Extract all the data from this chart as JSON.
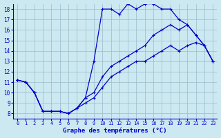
{
  "title": "Graphe des températures (°C)",
  "background_color": "#cce8f0",
  "grid_color": "#99bbcc",
  "line_color": "#0000cc",
  "xlim": [
    -0.5,
    23.5
  ],
  "ylim": [
    7.5,
    18.5
  ],
  "xticks": [
    0,
    1,
    2,
    3,
    4,
    5,
    6,
    7,
    8,
    9,
    10,
    11,
    12,
    13,
    14,
    15,
    16,
    17,
    18,
    19,
    20,
    21,
    22,
    23
  ],
  "yticks": [
    8,
    9,
    10,
    11,
    12,
    13,
    14,
    15,
    16,
    17,
    18
  ],
  "line1_x": [
    0,
    1,
    2,
    3,
    4,
    5,
    6,
    7,
    8,
    9,
    10,
    11,
    12,
    13,
    14,
    15,
    16,
    17,
    18,
    19,
    20,
    21,
    22,
    23
  ],
  "line1_y": [
    11.2,
    11.0,
    10.0,
    8.2,
    8.2,
    8.2,
    8.0,
    8.5,
    9.5,
    13.0,
    18.0,
    18.0,
    17.5,
    18.5,
    18.0,
    18.5,
    18.5,
    18.0,
    18.0,
    17.0,
    16.5,
    15.5,
    14.5,
    13.0
  ],
  "line2_x": [
    0,
    1,
    2,
    3,
    4,
    5,
    6,
    7,
    8,
    9,
    10,
    11,
    12,
    13,
    14,
    15,
    16,
    17,
    18,
    19,
    20,
    21,
    22,
    23
  ],
  "line2_y": [
    11.2,
    11.0,
    10.0,
    8.2,
    8.2,
    8.2,
    8.0,
    8.5,
    9.5,
    10.0,
    11.5,
    12.5,
    13.0,
    13.5,
    14.0,
    14.5,
    15.5,
    16.0,
    16.5,
    16.0,
    16.5,
    15.5,
    14.5,
    13.0
  ],
  "line3_x": [
    0,
    1,
    2,
    3,
    4,
    5,
    6,
    7,
    8,
    9,
    10,
    11,
    12,
    13,
    14,
    15,
    16,
    17,
    18,
    19,
    20,
    21,
    22,
    23
  ],
  "line3_y": [
    11.2,
    11.0,
    10.0,
    8.2,
    8.2,
    8.2,
    8.0,
    8.5,
    9.0,
    9.5,
    10.5,
    11.5,
    12.0,
    12.5,
    13.0,
    13.0,
    13.5,
    14.0,
    14.5,
    14.0,
    14.5,
    14.8,
    14.5,
    13.0
  ]
}
